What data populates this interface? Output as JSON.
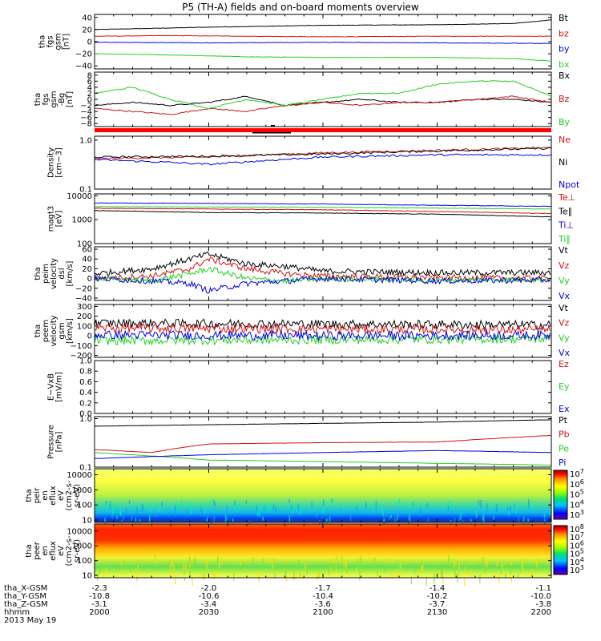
{
  "title": "P5 (TH-A) fields and on-board moments overview",
  "colors": {
    "black": "#000000",
    "red": "#d01010",
    "blue": "#0000e0",
    "green": "#20d020"
  },
  "footer": {
    "row_labels": [
      "tha_X-GSM",
      "tha_Y-GSM",
      "tha_Z-GSM",
      "hhmm"
    ],
    "date": "2013 May 19",
    "columns": [
      {
        "x": "-2.3",
        "y": "-10.8",
        "z": "-3.1",
        "hhmm": "2000"
      },
      {
        "x": "-2.0",
        "y": "-10.6",
        "z": "-3.4",
        "hhmm": "2030"
      },
      {
        "x": "-1.7",
        "y": "-10.4",
        "z": "-3.6",
        "hhmm": "2100"
      },
      {
        "x": "-1.4",
        "y": "-10.2",
        "z": "-3.7",
        "hhmm": "2130"
      },
      {
        "x": "-1.1",
        "y": "-10.0",
        "z": "-3.8",
        "hhmm": "2200"
      }
    ]
  },
  "chart_data": [
    {
      "type": "line",
      "id": "fgs",
      "ylabel": [
        "tha",
        "fgs",
        "gsm",
        "[nT]"
      ],
      "ylim": [
        -45,
        45
      ],
      "yticks": [
        "40",
        "20",
        "0",
        "−20",
        "−40"
      ],
      "yticks_values": [
        40,
        20,
        0,
        -20,
        -40
      ],
      "series": [
        {
          "name": "Bt",
          "color": "black",
          "x_minutes": [
            0,
            30,
            60,
            90,
            110,
            120
          ],
          "values": [
            20,
            24,
            27,
            28,
            30,
            36
          ]
        },
        {
          "name": "bz",
          "color": "red",
          "x_minutes": [
            0,
            20,
            40,
            60,
            90,
            120
          ],
          "values": [
            9,
            10,
            9,
            8,
            9,
            9
          ]
        },
        {
          "name": "by",
          "color": "blue",
          "x_minutes": [
            0,
            30,
            60,
            90,
            120
          ],
          "values": [
            -1,
            -2,
            -1,
            -2,
            -3
          ]
        },
        {
          "name": "bx",
          "color": "green",
          "x_minutes": [
            0,
            20,
            40,
            60,
            90,
            110,
            120
          ],
          "values": [
            -20,
            -22,
            -25,
            -26,
            -26,
            -28,
            -32
          ]
        }
      ]
    },
    {
      "type": "line",
      "id": "fgs_dsl",
      "ylabel": [
        "tha",
        "fgs",
        "gsm",
        "-Bg",
        "[nT]"
      ],
      "ylim": [
        -9,
        9
      ],
      "yticks": [
        "8",
        "6",
        "4",
        "2",
        "0",
        "−2",
        "−4",
        "−6",
        "−8"
      ],
      "yticks_values": [
        8,
        6,
        4,
        2,
        0,
        -2,
        -4,
        -6,
        -8
      ],
      "series": [
        {
          "name": "Bx",
          "color": "black",
          "x_minutes": [
            0,
            10,
            20,
            30,
            40,
            50,
            60,
            70,
            80,
            90,
            100,
            110,
            120
          ],
          "values": [
            -2,
            -1,
            -2,
            -1,
            1,
            -2,
            -1,
            0,
            -1,
            -1,
            0,
            0,
            -1
          ]
        },
        {
          "name": "Bz",
          "color": "red",
          "x_minutes": [
            0,
            10,
            20,
            30,
            40,
            50,
            60,
            70,
            80,
            90,
            100,
            110,
            120
          ],
          "values": [
            -3,
            -4,
            -5,
            -3,
            -4,
            -2,
            -1,
            -2,
            -1,
            -1,
            0,
            1,
            -1
          ]
        },
        {
          "name": "By",
          "color": "green",
          "x_minutes": [
            0,
            10,
            20,
            30,
            40,
            50,
            60,
            70,
            80,
            90,
            100,
            110,
            120
          ],
          "values": [
            2,
            4,
            0,
            -3,
            0,
            -2,
            0,
            2,
            2,
            5,
            6,
            6,
            1
          ]
        }
      ]
    },
    {
      "type": "line",
      "id": "density",
      "ylabel": [
        "Density",
        "[cm−3]"
      ],
      "yscale": "log",
      "ylim": [
        0.1,
        1.2
      ],
      "yticks": [
        "1.0",
        "0.1"
      ],
      "yticks_values": [
        1.0,
        0.1
      ],
      "series": [
        {
          "name": "Ne",
          "color": "red",
          "x_minutes": [
            0,
            30,
            60,
            90,
            120
          ],
          "values": [
            0.42,
            0.45,
            0.55,
            0.62,
            0.7
          ]
        },
        {
          "name": "Ni",
          "color": "black",
          "x_minutes": [
            0,
            30,
            60,
            90,
            120
          ],
          "values": [
            0.45,
            0.47,
            0.52,
            0.6,
            0.68
          ]
        },
        {
          "name": "Npot",
          "color": "blue",
          "x_minutes": [
            0,
            20,
            30,
            40,
            60,
            90,
            120
          ],
          "values": [
            0.4,
            0.35,
            0.32,
            0.36,
            0.45,
            0.5,
            0.5
          ]
        }
      ]
    },
    {
      "type": "line",
      "id": "temperature",
      "ylabel": [
        "magt3",
        "[eV]"
      ],
      "yscale": "log",
      "ylim": [
        100,
        12000
      ],
      "yticks": [
        "10000",
        "1000",
        "100"
      ],
      "yticks_values": [
        10000,
        1000,
        100
      ],
      "series": [
        {
          "name": "Te⊥",
          "color": "red",
          "x_minutes": [
            0,
            60,
            120
          ],
          "values": [
            3000,
            2600,
            1800
          ]
        },
        {
          "name": "Te∥",
          "color": "black",
          "x_minutes": [
            0,
            30,
            60,
            90,
            120
          ],
          "values": [
            2400,
            2000,
            1900,
            1700,
            1300
          ]
        },
        {
          "name": "Ti⊥",
          "color": "blue",
          "x_minutes": [
            0,
            30,
            60,
            90,
            120
          ],
          "values": [
            5000,
            4800,
            4500,
            4000,
            3600
          ]
        },
        {
          "name": "Ti∥",
          "color": "green",
          "x_minutes": [
            0,
            60,
            120
          ],
          "values": [
            3500,
            3300,
            2800
          ]
        }
      ]
    },
    {
      "type": "line",
      "id": "peim",
      "ylabel": [
        "tha",
        "peim",
        "velocity",
        "dsl",
        "[km/s]"
      ],
      "ylim": [
        -45,
        65
      ],
      "yticks": [
        "60",
        "40",
        "20",
        "0",
        "−20",
        "−40"
      ],
      "yticks_values": [
        60,
        40,
        20,
        0,
        -20,
        -40
      ],
      "series": [
        {
          "name": "Vt",
          "color": "black",
          "x_minutes": [
            0,
            15,
            25,
            30,
            40,
            50,
            60,
            90,
            120
          ],
          "values": [
            10,
            20,
            40,
            50,
            30,
            25,
            15,
            12,
            12
          ]
        },
        {
          "name": "Vz",
          "color": "red",
          "x_minutes": [
            0,
            15,
            25,
            30,
            40,
            50,
            60,
            90,
            120
          ],
          "values": [
            0,
            5,
            20,
            40,
            20,
            10,
            5,
            2,
            0
          ]
        },
        {
          "name": "Vy",
          "color": "green",
          "x_minutes": [
            0,
            15,
            25,
            30,
            40,
            50,
            60,
            90,
            120
          ],
          "values": [
            0,
            -5,
            10,
            20,
            0,
            -5,
            0,
            -3,
            -2
          ]
        },
        {
          "name": "Vx",
          "color": "blue",
          "x_minutes": [
            0,
            15,
            25,
            30,
            40,
            50,
            60,
            90,
            120
          ],
          "values": [
            0,
            -5,
            -10,
            -25,
            -10,
            -5,
            0,
            -5,
            -3
          ]
        }
      ]
    },
    {
      "type": "line",
      "id": "peem",
      "ylabel": [
        "tha",
        "peem",
        "velocity",
        "gsm",
        "[km/s]"
      ],
      "ylim": [
        -220,
        320
      ],
      "yticks": [
        "300",
        "200",
        "100",
        "0",
        "−100",
        "−200"
      ],
      "yticks_values": [
        300,
        200,
        100,
        0,
        -100,
        -200
      ],
      "series": [
        {
          "name": "Vt",
          "color": "black",
          "x_minutes": [
            0,
            60,
            120
          ],
          "values": [
            130,
            120,
            110
          ]
        },
        {
          "name": "Vz",
          "color": "red",
          "x_minutes": [
            0,
            60,
            120
          ],
          "values": [
            80,
            70,
            60
          ]
        },
        {
          "name": "Vy",
          "color": "green",
          "x_minutes": [
            0,
            60,
            120
          ],
          "values": [
            -50,
            -40,
            -30
          ]
        },
        {
          "name": "Vx",
          "color": "blue",
          "x_minutes": [
            0,
            60,
            120
          ],
          "values": [
            10,
            0,
            5
          ]
        }
      ]
    },
    {
      "type": "line",
      "id": "efield",
      "ylabel": [
        "E−VxB",
        "[mV/m]"
      ],
      "ylim": [
        0,
        1.0
      ],
      "yticks": [
        "1.0",
        "0.8",
        "0.6",
        "0.4",
        "0.2",
        "0.0"
      ],
      "yticks_values": [
        1.0,
        0.8,
        0.6,
        0.4,
        0.2,
        0.0
      ],
      "series": [
        {
          "name": "Ez",
          "color": "red",
          "x_minutes": [],
          "values": []
        },
        {
          "name": "Ey",
          "color": "green",
          "x_minutes": [],
          "values": []
        },
        {
          "name": "Ex",
          "color": "blue",
          "x_minutes": [],
          "values": []
        }
      ]
    },
    {
      "type": "line",
      "id": "pressure",
      "ylabel": [
        "Pressure",
        "[nPa]"
      ],
      "yscale": "log",
      "ylim": [
        0.1,
        1.1
      ],
      "yticks": [
        "1.0",
        "0.1"
      ],
      "yticks_values": [
        1.0,
        0.1
      ],
      "series": [
        {
          "name": "Pt",
          "color": "black",
          "x_minutes": [
            0,
            30,
            60,
            90,
            120
          ],
          "values": [
            0.7,
            0.75,
            0.8,
            0.85,
            0.95
          ]
        },
        {
          "name": "Pb",
          "color": "red",
          "x_minutes": [
            0,
            15,
            30,
            60,
            90,
            120
          ],
          "values": [
            0.23,
            0.2,
            0.3,
            0.32,
            0.33,
            0.45
          ]
        },
        {
          "name": "Pe",
          "color": "green",
          "x_minutes": [
            0,
            20,
            30,
            60,
            90,
            120
          ],
          "values": [
            0.2,
            0.16,
            0.14,
            0.13,
            0.12,
            0.11
          ]
        },
        {
          "name": "Pi",
          "color": "blue",
          "x_minutes": [
            0,
            30,
            60,
            90,
            120
          ],
          "values": [
            0.15,
            0.18,
            0.2,
            0.22,
            0.2
          ]
        }
      ]
    },
    {
      "type": "heatmap",
      "id": "peir",
      "ylabel": [
        "tha",
        "peir",
        "en",
        "eflux",
        "eV",
        "(cm2-s-",
        "sr-eV)"
      ],
      "yscale": "log",
      "ylim": [
        7,
        25000
      ],
      "yticks": [
        "10000",
        "1000",
        "100",
        "10"
      ],
      "yticks_values": [
        10000,
        1000,
        100,
        10
      ],
      "colorbar": {
        "ticks": [
          "7",
          "6",
          "5",
          "4",
          "3"
        ],
        "exponents": [
          7,
          6,
          5,
          4,
          3
        ],
        "base": "10"
      }
    },
    {
      "type": "heatmap",
      "id": "peer",
      "ylabel": [
        "tha",
        "peer",
        "en",
        "eflux",
        "eV",
        "(cm2-s-",
        "sr-eV)"
      ],
      "yscale": "log",
      "ylim": [
        7,
        30000
      ],
      "yticks": [
        "10000",
        "1000",
        "100",
        "10"
      ],
      "yticks_values": [
        10000,
        1000,
        100,
        10
      ],
      "colorbar": {
        "ticks": [
          "8",
          "7",
          "6",
          "5",
          "4",
          "3"
        ],
        "exponents": [
          8,
          7,
          6,
          5,
          4,
          3
        ],
        "base": "10"
      }
    }
  ]
}
